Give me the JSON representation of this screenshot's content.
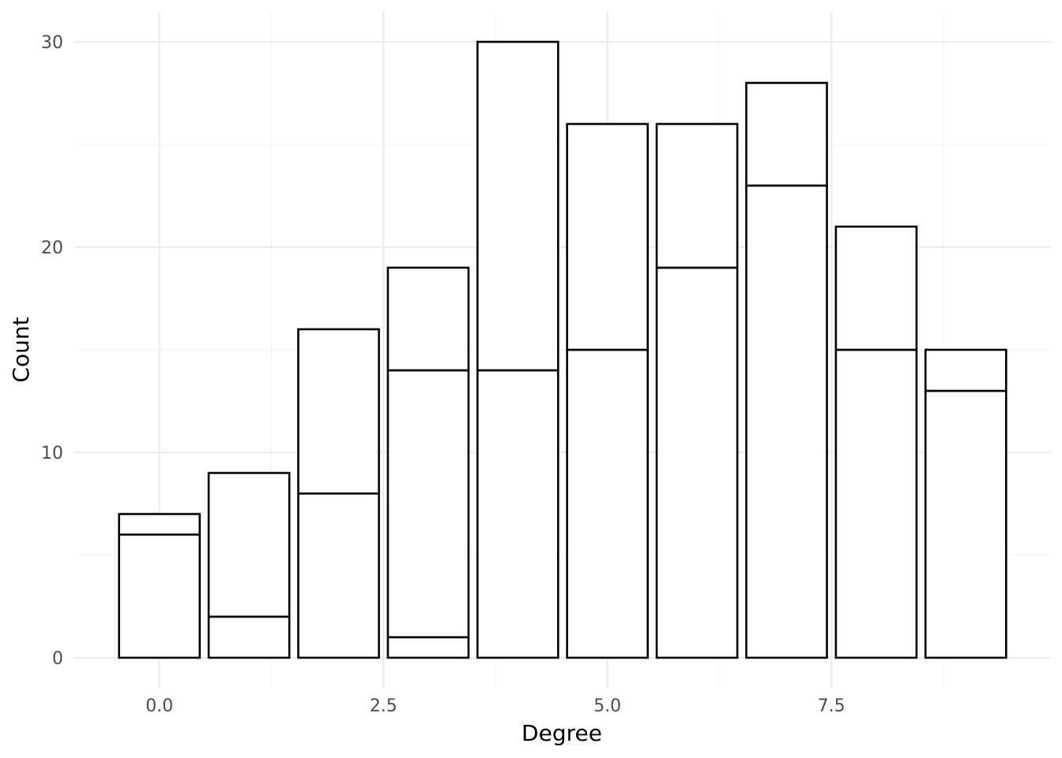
{
  "chart_data": {
    "type": "bar",
    "stacked": true,
    "xlabel": "Degree",
    "ylabel": "Count",
    "x": [
      0,
      1,
      2,
      3,
      4,
      5,
      6,
      7,
      8,
      9
    ],
    "series": [
      {
        "values": [
          6,
          2,
          8,
          1,
          14,
          15,
          19,
          23,
          15,
          13
        ]
      },
      {
        "values": [
          0,
          0,
          0,
          13,
          0,
          0,
          0,
          0,
          0,
          0
        ]
      },
      {
        "values": [
          1,
          7,
          8,
          5,
          16,
          11,
          7,
          5,
          6,
          2
        ]
      }
    ],
    "xlim": [
      -0.95,
      9.95
    ],
    "ylim": [
      -1.5,
      31.5
    ],
    "x_ticks": [
      {
        "value": 0,
        "label": "0.0"
      },
      {
        "value": 2.5,
        "label": "2.5"
      },
      {
        "value": 5,
        "label": "5.0"
      },
      {
        "value": 7.5,
        "label": "7.5"
      }
    ],
    "y_ticks": [
      {
        "value": 0,
        "label": "0"
      },
      {
        "value": 10,
        "label": "10"
      },
      {
        "value": 20,
        "label": "20"
      },
      {
        "value": 30,
        "label": "30"
      }
    ],
    "x_minor_ticks": [
      1.25,
      3.75,
      6.25,
      8.75
    ],
    "y_minor_ticks": [
      5,
      15,
      25
    ],
    "grid": true,
    "legend": "none",
    "colors": {
      "fill": "#ffffff",
      "outline": "#000000",
      "grid": "#ebebeb"
    }
  }
}
